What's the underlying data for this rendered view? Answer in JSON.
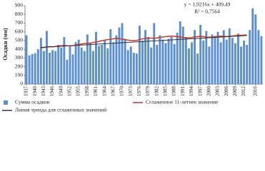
{
  "chart_data": {
    "type": "bar",
    "y_label": "Осадки (мм)",
    "annotation": [
      "y = 1,9216x + 409,49",
      "R² = 0,7564"
    ],
    "x": [
      1937,
      1938,
      1939,
      1940,
      1941,
      1942,
      1943,
      1944,
      1945,
      1946,
      1947,
      1948,
      1949,
      1950,
      1951,
      1952,
      1953,
      1954,
      1955,
      1956,
      1957,
      1958,
      1959,
      1960,
      1961,
      1962,
      1963,
      1964,
      1965,
      1966,
      1967,
      1968,
      1969,
      1970,
      1971,
      1972,
      1973,
      1974,
      1975,
      1976,
      1977,
      1978,
      1979,
      1980,
      1981,
      1982,
      1983,
      1984,
      1985,
      1986,
      1987,
      1988,
      1989,
      1990,
      1991,
      1992,
      1993,
      1994,
      1995,
      1996,
      1997,
      1998,
      1999,
      2000,
      2001,
      2002,
      2003,
      2004,
      2005,
      2006,
      2007,
      2008,
      2009,
      2010,
      2011,
      2012,
      2013,
      2014,
      2015,
      2016,
      2017,
      2018
    ],
    "xlim": [
      1936.5,
      2018.5
    ],
    "xticks": [
      1937,
      1940,
      1943,
      1946,
      1949,
      1952,
      1955,
      1958,
      1961,
      1964,
      1967,
      1970,
      1973,
      1976,
      1979,
      1982,
      1985,
      1988,
      1991,
      1994,
      1997,
      2000,
      2003,
      2006,
      2009,
      2012,
      2016
    ],
    "ylim": [
      0,
      900
    ],
    "yticks": [
      0,
      100,
      200,
      300,
      400,
      500,
      600,
      700,
      800,
      900
    ],
    "series": [
      {
        "name": "Сумма осадков",
        "type": "bar",
        "color": "#5b8fd0",
        "values": [
          560,
          330,
          345,
          355,
          400,
          530,
          380,
          610,
          360,
          390,
          380,
          450,
          420,
          540,
          280,
          430,
          340,
          480,
          510,
          420,
          380,
          570,
          470,
          380,
          600,
          440,
          450,
          500,
          410,
          630,
          480,
          560,
          650,
          700,
          520,
          390,
          430,
          360,
          350,
          670,
          500,
          620,
          540,
          420,
          700,
          450,
          560,
          510,
          470,
          520,
          540,
          460,
          590,
          720,
          660,
          540,
          410,
          480,
          620,
          350,
          680,
          500,
          610,
          430,
          570,
          550,
          600,
          480,
          620,
          510,
          640,
          530,
          470,
          580,
          430,
          500,
          450,
          620,
          870,
          800,
          620,
          550
        ]
      },
      {
        "name": "Сглаженное 11-летнее значение",
        "type": "line",
        "color": "#c0392b",
        "values": [
          null,
          null,
          null,
          null,
          null,
          415,
          420,
          425,
          430,
          428,
          432,
          438,
          440,
          445,
          440,
          438,
          442,
          448,
          455,
          460,
          465,
          468,
          470,
          478,
          482,
          490,
          498,
          505,
          510,
          515,
          520,
          525,
          522,
          515,
          510,
          505,
          500,
          498,
          502,
          510,
          520,
          525,
          530,
          528,
          525,
          530,
          535,
          540,
          545,
          548,
          550,
          548,
          545,
          540,
          535,
          532,
          530,
          535,
          540,
          545,
          548,
          545,
          540,
          538,
          540,
          545,
          548,
          550,
          548,
          545,
          548,
          552,
          555,
          558,
          560,
          562,
          565,
          null,
          null,
          null,
          null,
          null
        ]
      },
      {
        "name": "Линия тренда для сглаженных значений",
        "type": "line",
        "color": "#333333",
        "x": [
          1942,
          2013
        ],
        "values": [
          421,
          557
        ]
      }
    ]
  }
}
